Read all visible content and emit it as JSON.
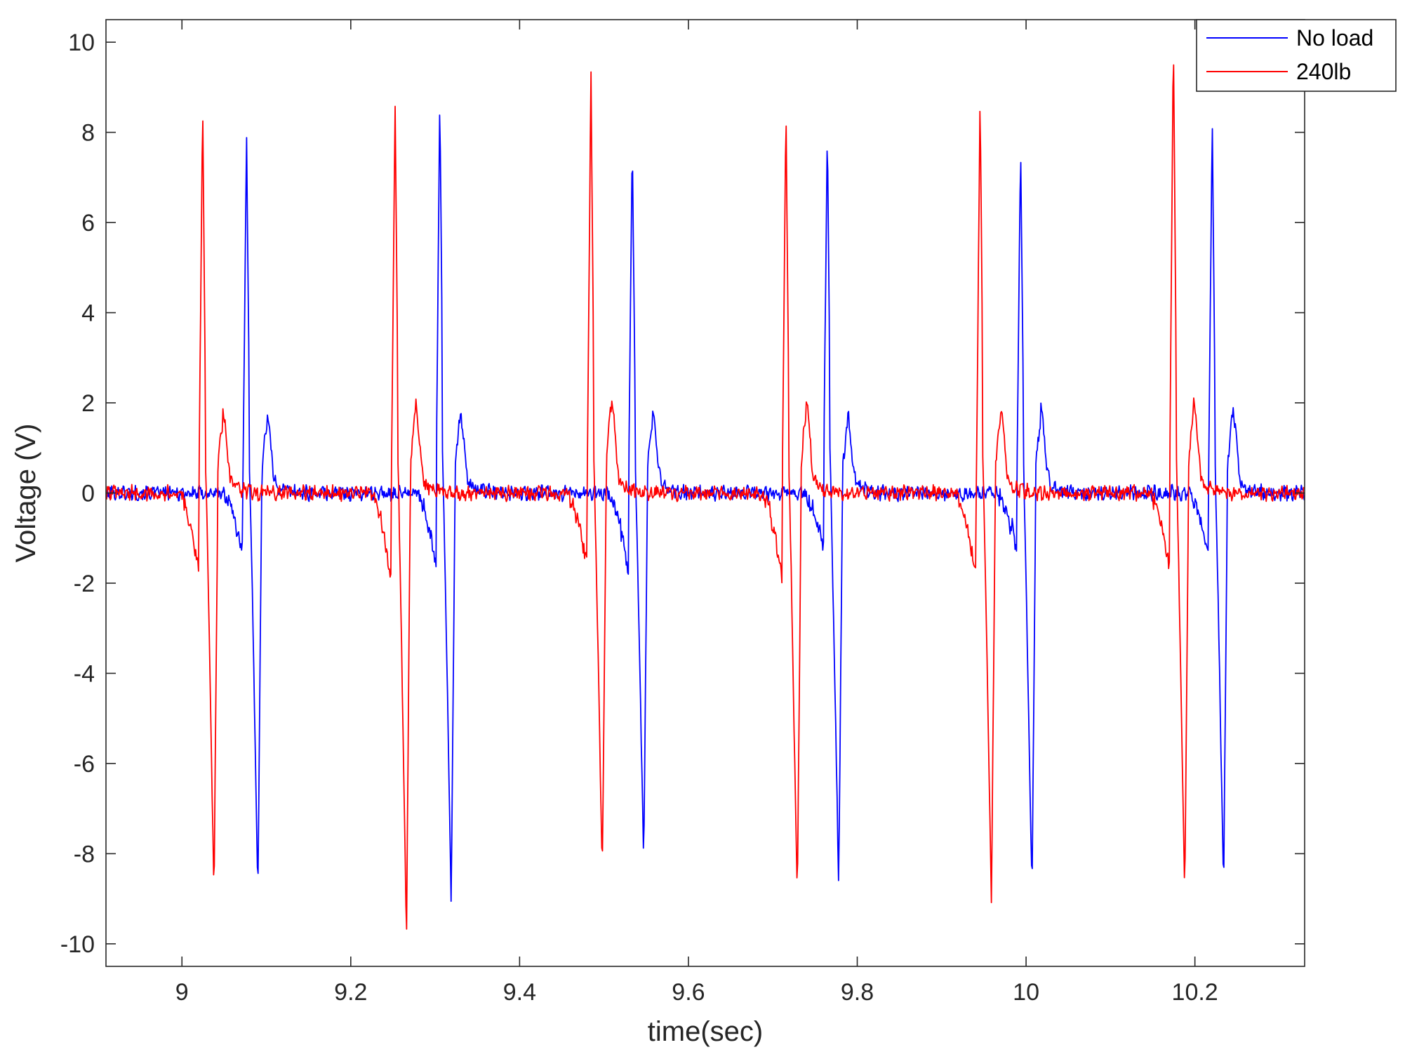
{
  "chart_data": {
    "type": "line",
    "xlabel": "time(sec)",
    "ylabel": "Voltage (V)",
    "xlim": [
      8.91,
      10.33
    ],
    "ylim": [
      -10.5,
      10.5
    ],
    "xticks": [
      9,
      9.2,
      9.4,
      9.6,
      9.8,
      10,
      10.2
    ],
    "xtick_labels": [
      "9",
      "9.2",
      "9.4",
      "9.6",
      "9.8",
      "10",
      "10.2"
    ],
    "yticks": [
      -10,
      -8,
      -6,
      -4,
      -2,
      0,
      2,
      4,
      6,
      8,
      10
    ],
    "ytick_labels": [
      "-10",
      "-8",
      "-6",
      "-4",
      "-2",
      "0",
      "2",
      "4",
      "6",
      "8",
      "10"
    ],
    "grid": false,
    "legend_position": "top-right",
    "box": true,
    "series": [
      {
        "name": "No load",
        "color": "#0000ff",
        "baseline_noise": 0.13,
        "spikes": [
          {
            "t": 9.078,
            "dip": -1.35,
            "peak": 7.95,
            "trough": -8.85,
            "rebound": 1.45
          },
          {
            "t": 9.307,
            "dip": -1.55,
            "peak": 8.85,
            "trough": -9.05,
            "rebound": 1.5
          },
          {
            "t": 9.535,
            "dip": -1.7,
            "peak": 7.9,
            "trough": -8.2,
            "rebound": 1.5
          },
          {
            "t": 9.766,
            "dip": -1.15,
            "peak": 8.2,
            "trough": -8.7,
            "rebound": 1.4
          },
          {
            "t": 9.995,
            "dip": -1.25,
            "peak": 7.8,
            "trough": -8.9,
            "rebound": 1.55
          },
          {
            "t": 10.222,
            "dip": -1.4,
            "peak": 8.35,
            "trough": -8.8,
            "rebound": 1.6
          }
        ]
      },
      {
        "name": "240lb",
        "color": "#ff0000",
        "baseline_noise": 0.13,
        "spikes": [
          {
            "t": 9.026,
            "dip": -1.75,
            "peak": 8.65,
            "trough": -8.95,
            "rebound": 1.5
          },
          {
            "t": 9.254,
            "dip": -2.0,
            "peak": 8.75,
            "trough": -9.9,
            "rebound": 1.75
          },
          {
            "t": 9.486,
            "dip": -1.6,
            "peak": 9.4,
            "trough": -8.45,
            "rebound": 1.8
          },
          {
            "t": 9.717,
            "dip": -1.85,
            "peak": 8.55,
            "trough": -9.15,
            "rebound": 1.7
          },
          {
            "t": 9.947,
            "dip": -1.95,
            "peak": 8.85,
            "trough": -9.1,
            "rebound": 1.6
          },
          {
            "t": 10.176,
            "dip": -1.65,
            "peak": 10.25,
            "trough": -8.9,
            "rebound": 1.7
          }
        ]
      }
    ]
  }
}
